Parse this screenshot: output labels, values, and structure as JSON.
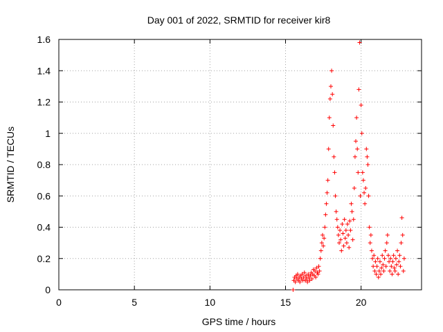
{
  "chart_data": {
    "type": "scatter",
    "title": "Day 001 of 2022, SRMTID for receiver kir8",
    "xlabel": "GPS time / hours",
    "ylabel": "SRMTID / TECUs",
    "xlim": [
      0,
      24
    ],
    "ylim": [
      0,
      1.6
    ],
    "x_ticks": [
      0,
      5,
      10,
      15,
      20
    ],
    "x_tick_labels": [
      "0",
      "5",
      "10",
      "15",
      "20"
    ],
    "y_ticks": [
      0,
      0.2,
      0.4,
      0.6,
      0.8,
      1,
      1.2,
      1.4,
      1.6
    ],
    "y_tick_labels": [
      "0",
      "0.2",
      "0.4",
      "0.6",
      "0.8",
      "1",
      "1.2",
      "1.4",
      "1.6"
    ],
    "grid": true,
    "marker": "plus",
    "color": "#ff0000",
    "series": [
      {
        "name": "SRMTID",
        "points": [
          [
            15.5,
            0.0
          ],
          [
            15.55,
            0.06
          ],
          [
            15.6,
            0.08
          ],
          [
            15.65,
            0.05
          ],
          [
            15.7,
            0.09
          ],
          [
            15.75,
            0.07
          ],
          [
            15.8,
            0.1
          ],
          [
            15.85,
            0.06
          ],
          [
            15.9,
            0.08
          ],
          [
            15.95,
            0.05
          ],
          [
            16.0,
            0.09
          ],
          [
            16.05,
            0.07
          ],
          [
            16.1,
            0.1
          ],
          [
            16.15,
            0.06
          ],
          [
            16.2,
            0.08
          ],
          [
            16.25,
            0.11
          ],
          [
            16.3,
            0.06
          ],
          [
            16.35,
            0.09
          ],
          [
            16.4,
            0.07
          ],
          [
            16.45,
            0.05
          ],
          [
            16.5,
            0.1
          ],
          [
            16.55,
            0.08
          ],
          [
            16.6,
            0.06
          ],
          [
            16.65,
            0.09
          ],
          [
            16.7,
            0.11
          ],
          [
            16.75,
            0.07
          ],
          [
            16.8,
            0.1
          ],
          [
            16.85,
            0.13
          ],
          [
            16.9,
            0.09
          ],
          [
            16.95,
            0.12
          ],
          [
            17.0,
            0.08
          ],
          [
            17.05,
            0.14
          ],
          [
            17.1,
            0.11
          ],
          [
            17.15,
            0.1
          ],
          [
            17.2,
            0.15
          ],
          [
            17.25,
            0.12
          ],
          [
            17.3,
            0.2
          ],
          [
            17.35,
            0.25
          ],
          [
            17.4,
            0.3
          ],
          [
            17.45,
            0.35
          ],
          [
            17.5,
            0.28
          ],
          [
            17.55,
            0.33
          ],
          [
            17.6,
            0.4
          ],
          [
            17.65,
            0.48
          ],
          [
            17.7,
            0.55
          ],
          [
            17.75,
            0.62
          ],
          [
            17.8,
            0.7
          ],
          [
            17.85,
            0.9
          ],
          [
            17.9,
            1.1
          ],
          [
            17.95,
            1.22
          ],
          [
            18.0,
            1.3
          ],
          [
            18.05,
            1.4
          ],
          [
            18.1,
            1.25
          ],
          [
            18.15,
            1.05
          ],
          [
            18.2,
            0.85
          ],
          [
            18.25,
            0.75
          ],
          [
            18.3,
            0.6
          ],
          [
            18.35,
            0.5
          ],
          [
            18.4,
            0.45
          ],
          [
            18.45,
            0.4
          ],
          [
            18.5,
            0.35
          ],
          [
            18.55,
            0.3
          ],
          [
            18.6,
            0.38
          ],
          [
            18.65,
            0.32
          ],
          [
            18.7,
            0.25
          ],
          [
            18.75,
            0.42
          ],
          [
            18.8,
            0.36
          ],
          [
            18.85,
            0.28
          ],
          [
            18.9,
            0.45
          ],
          [
            18.95,
            0.33
          ],
          [
            19.0,
            0.38
          ],
          [
            19.05,
            0.3
          ],
          [
            19.1,
            0.42
          ],
          [
            19.15,
            0.35
          ],
          [
            19.2,
            0.27
          ],
          [
            19.25,
            0.44
          ],
          [
            19.3,
            0.38
          ],
          [
            19.35,
            0.55
          ],
          [
            19.4,
            0.5
          ],
          [
            19.45,
            0.32
          ],
          [
            19.5,
            0.45
          ],
          [
            19.55,
            0.65
          ],
          [
            19.6,
            0.85
          ],
          [
            19.65,
            0.95
          ],
          [
            19.7,
            1.1
          ],
          [
            19.75,
            0.9
          ],
          [
            19.8,
            0.75
          ],
          [
            19.85,
            1.28
          ],
          [
            19.9,
            1.58
          ],
          [
            19.95,
            0.6
          ],
          [
            20.0,
            1.18
          ],
          [
            20.05,
            1.0
          ],
          [
            20.1,
            0.75
          ],
          [
            20.15,
            0.7
          ],
          [
            20.2,
            0.62
          ],
          [
            20.25,
            0.55
          ],
          [
            20.3,
            0.65
          ],
          [
            20.35,
            0.9
          ],
          [
            20.4,
            0.85
          ],
          [
            20.45,
            0.8
          ],
          [
            20.5,
            0.6
          ],
          [
            20.55,
            0.4
          ],
          [
            20.6,
            0.3
          ],
          [
            20.65,
            0.35
          ],
          [
            20.7,
            0.25
          ],
          [
            20.75,
            0.2
          ],
          [
            20.8,
            0.15
          ],
          [
            20.85,
            0.22
          ],
          [
            20.9,
            0.12
          ],
          [
            20.95,
            0.18
          ],
          [
            21.0,
            0.1
          ],
          [
            21.05,
            0.15
          ],
          [
            21.1,
            0.2
          ],
          [
            21.15,
            0.08
          ],
          [
            21.2,
            0.12
          ],
          [
            21.25,
            0.18
          ],
          [
            21.3,
            0.1
          ],
          [
            21.35,
            0.14
          ],
          [
            21.4,
            0.22
          ],
          [
            21.45,
            0.16
          ],
          [
            21.5,
            0.12
          ],
          [
            21.55,
            0.2
          ],
          [
            21.6,
            0.25
          ],
          [
            21.65,
            0.15
          ],
          [
            21.7,
            0.3
          ],
          [
            21.75,
            0.35
          ],
          [
            21.8,
            0.22
          ],
          [
            21.85,
            0.18
          ],
          [
            21.9,
            0.12
          ],
          [
            21.95,
            0.2
          ],
          [
            22.0,
            0.15
          ],
          [
            22.05,
            0.1
          ],
          [
            22.1,
            0.18
          ],
          [
            22.15,
            0.22
          ],
          [
            22.2,
            0.14
          ],
          [
            22.25,
            0.12
          ],
          [
            22.3,
            0.2
          ],
          [
            22.35,
            0.16
          ],
          [
            22.4,
            0.25
          ],
          [
            22.45,
            0.1
          ],
          [
            22.5,
            0.18
          ],
          [
            22.55,
            0.22
          ],
          [
            22.6,
            0.15
          ],
          [
            22.65,
            0.3
          ],
          [
            22.7,
            0.46
          ],
          [
            22.75,
            0.35
          ],
          [
            22.8,
            0.12
          ],
          [
            22.85,
            0.2
          ]
        ]
      }
    ]
  }
}
